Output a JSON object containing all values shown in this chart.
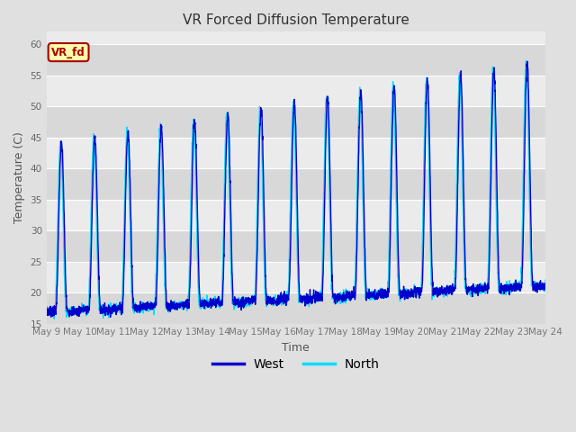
{
  "title": "VR Forced Diffusion Temperature",
  "xlabel": "Time",
  "ylabel": "Temperature (C)",
  "ylim": [
    15,
    62
  ],
  "yticks": [
    15,
    20,
    25,
    30,
    35,
    40,
    45,
    50,
    55,
    60
  ],
  "west_color": "#0000CC",
  "north_color": "#00DDFF",
  "annotation_text": "VR_fd",
  "annotation_bg": "#FFFFAA",
  "annotation_border": "#AA0000",
  "fig_bg": "#E0E0E0",
  "plot_bg": "#EBEBEB",
  "tick_labels": [
    "May 9",
    "May 10",
    "May 11",
    "May 12",
    "May 13",
    "May 14",
    "May 15",
    "May 16",
    "May 17",
    "May 18",
    "May 19",
    "May 20",
    "May 21",
    "May 22",
    "May 23",
    "May 24"
  ],
  "grid_color": "#FFFFFF",
  "band_color": "#D8D8D8"
}
